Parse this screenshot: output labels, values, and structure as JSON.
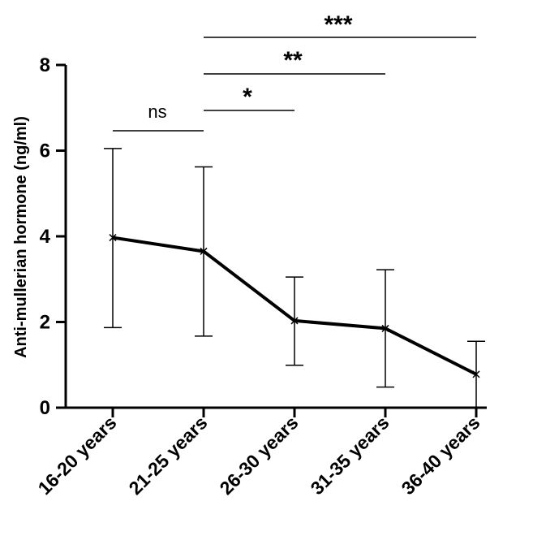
{
  "chart_data": {
    "type": "line",
    "ylabel": "Anti-mullerian hormone (ng/ml)",
    "xlabel": "",
    "title": "",
    "categories": [
      "16-20 years",
      "21-25 years",
      "26-30 years",
      "31-35 years",
      "36-40 years"
    ],
    "series": [
      {
        "values": [
          3.97,
          3.65,
          2.03,
          1.85,
          0.78
        ],
        "error_upper": [
          6.05,
          5.62,
          3.05,
          3.22,
          1.55
        ],
        "error_lower": [
          1.87,
          1.67,
          0.99,
          0.48,
          0.0
        ]
      }
    ],
    "ylim": [
      0,
      8
    ],
    "yticks": [
      "0",
      "2",
      "4",
      "6",
      "8"
    ],
    "significance": [
      {
        "from": "16-20 years",
        "to": "21-25 years",
        "label": "ns"
      },
      {
        "from": "21-25 years",
        "to": "26-30 years",
        "label": "*"
      },
      {
        "from": "21-25 years",
        "to": "31-35 years",
        "label": "**"
      },
      {
        "from": "21-25 years",
        "to": "36-40 years",
        "label": "***"
      }
    ],
    "grid": false,
    "line_color": "#000000"
  }
}
